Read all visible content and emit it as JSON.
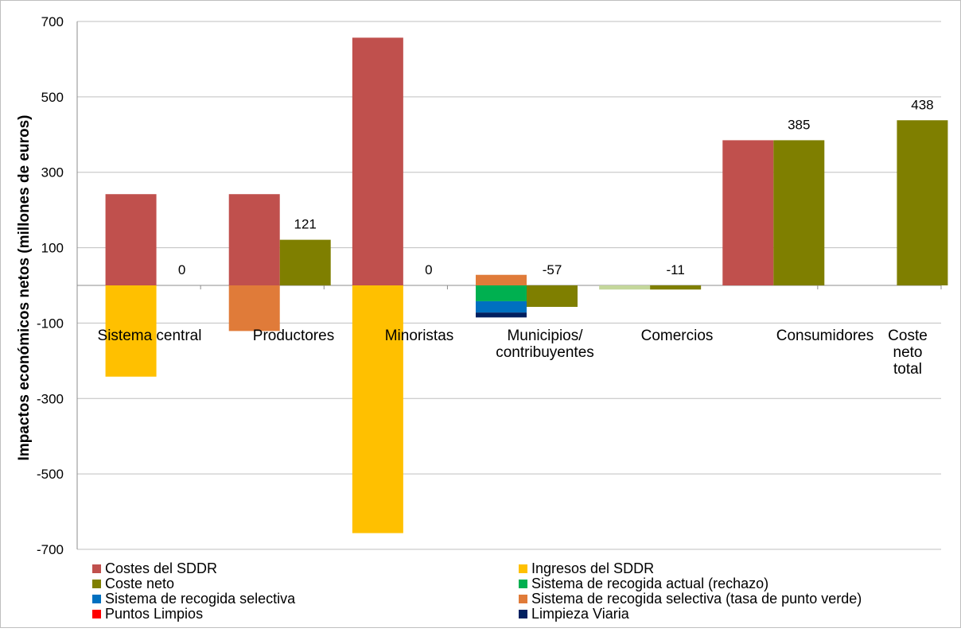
{
  "chart_data": {
    "type": "bar",
    "ylabel": "Impactos económicos netos (millones de euros)",
    "ylim": [
      -700,
      700
    ],
    "yticks": [
      700,
      500,
      300,
      100,
      -100,
      -300,
      -500,
      -700
    ],
    "grid": true,
    "legend_position": "bottom",
    "groups": [
      {
        "label": [
          "Sistema central"
        ]
      },
      {
        "label": [
          "Productores"
        ]
      },
      {
        "label": [
          "Minoristas"
        ]
      },
      {
        "label": [
          "Municipios/",
          "contribuyentes"
        ]
      },
      {
        "label": [
          "Comercios"
        ]
      },
      {
        "label": [
          "Consumidores"
        ]
      },
      {
        "label": [
          "Coste",
          "neto",
          "total"
        ]
      }
    ],
    "series": [
      {
        "name": "Costes del SDDR",
        "color": "#c0504d"
      },
      {
        "name": "Ingresos del SDDR",
        "color": "#ffc000"
      },
      {
        "name": "Coste neto",
        "color": "#7f7f00"
      },
      {
        "name": "Sistema de recogida actual (rechazo)",
        "color": "#00b050"
      },
      {
        "name": "Sistema de recogida selectiva",
        "color": "#0070c0"
      },
      {
        "name": "Sistema de recogida selectiva (tasa de punto verde)",
        "color": "#e07b39"
      },
      {
        "name": "Puntos Limpios",
        "color": "#ff0000"
      },
      {
        "name": "Limpieza Viaria",
        "color": "#002060"
      }
    ],
    "comercios_bar_color": "#c4d79b",
    "bars": [
      {
        "group": 0,
        "slot": 0,
        "segments": [
          {
            "series": "Costes del SDDR",
            "value": 242
          },
          {
            "series": "Ingresos del SDDR",
            "value": -242
          }
        ]
      },
      {
        "group": 0,
        "slot": 1,
        "segments": [
          {
            "series": "Coste neto",
            "value": 0
          }
        ],
        "label": "0"
      },
      {
        "group": 1,
        "slot": 0,
        "segments": [
          {
            "series": "Costes del SDDR",
            "value": 242
          },
          {
            "series": "Sistema de recogida selectiva (tasa de punto verde)",
            "value": -121
          }
        ]
      },
      {
        "group": 1,
        "slot": 1,
        "segments": [
          {
            "series": "Coste neto",
            "value": 121
          }
        ],
        "label": "121"
      },
      {
        "group": 2,
        "slot": 0,
        "segments": [
          {
            "series": "Costes del SDDR",
            "value": 657
          },
          {
            "series": "Ingresos del SDDR",
            "value": -657
          }
        ]
      },
      {
        "group": 2,
        "slot": 1,
        "segments": [
          {
            "series": "Coste neto",
            "value": 0
          }
        ],
        "label": "0"
      },
      {
        "group": 3,
        "slot": 0,
        "segments": [
          {
            "series": "Sistema de recogida selectiva (tasa de punto verde)",
            "value": 28
          },
          {
            "series": "Sistema de recogida actual (rechazo)",
            "value": -42
          },
          {
            "series": "Sistema de recogida selectiva",
            "value": -30
          },
          {
            "series": "Limpieza Viaria",
            "value": -13
          }
        ]
      },
      {
        "group": 3,
        "slot": 1,
        "segments": [
          {
            "series": "Coste neto",
            "value": -57
          }
        ],
        "label": "-57"
      },
      {
        "group": 4,
        "slot": 0,
        "segments": [
          {
            "series": "Comercios",
            "value": -11
          }
        ]
      },
      {
        "group": 4,
        "slot": 1,
        "segments": [
          {
            "series": "Coste neto",
            "value": -11
          }
        ],
        "label": "-11"
      },
      {
        "group": 5,
        "slot": 0,
        "segments": [
          {
            "series": "Costes del SDDR",
            "value": 385
          }
        ]
      },
      {
        "group": 5,
        "slot": 1,
        "segments": [
          {
            "series": "Coste neto",
            "value": 385
          }
        ],
        "label": "385"
      },
      {
        "group": 6,
        "slot": 1,
        "segments": [
          {
            "series": "Coste neto",
            "value": 438
          }
        ],
        "label": "438"
      }
    ]
  }
}
